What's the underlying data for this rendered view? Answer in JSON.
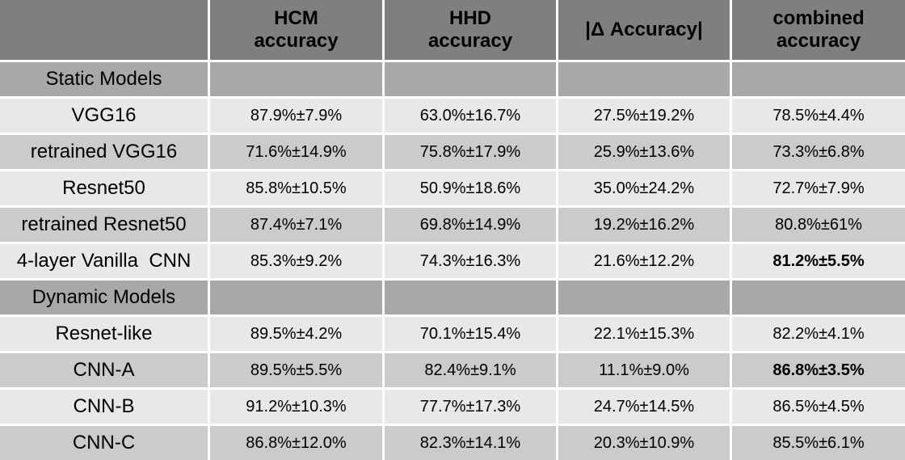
{
  "colors": {
    "header_bg": "#7f7f7f",
    "section_row_bg": "#a8a8a8",
    "light_row_bg": "#e8e8e8",
    "dark_row_bg": "#cbcbcb",
    "gap": "#ffffff",
    "text": "#000000"
  },
  "table": {
    "columns": [
      {
        "label": ""
      },
      {
        "label": "HCM\naccuracy"
      },
      {
        "label": "HHD\naccuracy"
      },
      {
        "label": "|Δ Accuracy|"
      },
      {
        "label": "combined\naccuracy"
      }
    ],
    "rows": [
      {
        "type": "section",
        "label": "Static Models",
        "values": [
          "",
          "",
          "",
          ""
        ]
      },
      {
        "type": "data",
        "label": "VGG16",
        "values": [
          "87.9%±7.9%",
          "63.0%±16.7%",
          "27.5%±19.2%",
          "78.5%±4.4%"
        ]
      },
      {
        "type": "data",
        "label": "retrained VGG16",
        "values": [
          "71.6%±14.9%",
          "75.8%±17.9%",
          "25.9%±13.6%",
          "73.3%±6.8%"
        ]
      },
      {
        "type": "data",
        "label": "Resnet50",
        "values": [
          "85.8%±10.5%",
          "50.9%±18.6%",
          "35.0%±24.2%",
          "72.7%±7.9%"
        ]
      },
      {
        "type": "data",
        "label": "retrained Resnet50",
        "values": [
          "87.4%±7.1%",
          "69.8%±14.9%",
          "19.2%±16.2%",
          "80.8%±61%"
        ]
      },
      {
        "type": "data",
        "label": "4-layer Vanilla  CNN",
        "values": [
          "85.3%±9.2%",
          "74.3%±16.3%",
          "21.6%±12.2%",
          "81.2%±5.5%"
        ],
        "bold_value_index": 3
      },
      {
        "type": "section",
        "label": "Dynamic Models",
        "values": [
          "",
          "",
          "",
          ""
        ]
      },
      {
        "type": "data",
        "label": "Resnet-like",
        "values": [
          "89.5%±4.2%",
          "70.1%±15.4%",
          "22.1%±15.3%",
          "82.2%±4.1%"
        ]
      },
      {
        "type": "data",
        "label": "CNN-A",
        "values": [
          "89.5%±5.5%",
          "82.4%±9.1%",
          "11.1%±9.0%",
          "86.8%±3.5%"
        ],
        "bold_value_index": 3
      },
      {
        "type": "data",
        "label": "CNN-B",
        "values": [
          "91.2%±10.3%",
          "77.7%±17.3%",
          "24.7%±14.5%",
          "86.5%±4.5%"
        ]
      },
      {
        "type": "data",
        "label": "CNN-C",
        "values": [
          "86.8%±12.0%",
          "82.3%±14.1%",
          "20.3%±10.9%",
          "85.5%±6.1%"
        ]
      }
    ]
  }
}
